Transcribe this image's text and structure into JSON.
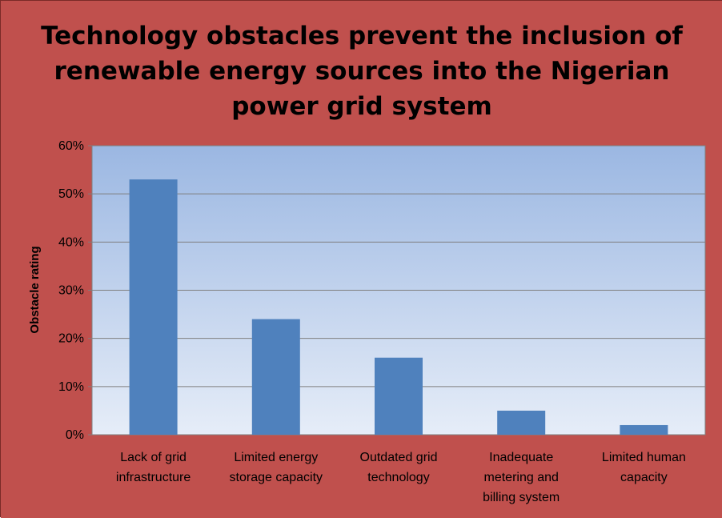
{
  "chart_data": {
    "type": "bar",
    "title_lines": [
      "Technology obstacles prevent the inclusion of",
      "renewable energy sources into the Nigerian",
      "power grid system"
    ],
    "ylabel": "Obstacle rating",
    "xlabel": "",
    "categories": [
      [
        "Lack of grid",
        "infrastructure"
      ],
      [
        "Limited energy",
        "storage capacity"
      ],
      [
        "Outdated grid",
        "technology"
      ],
      [
        "Inadequate",
        "metering and",
        "billing system"
      ],
      [
        "Limited human",
        "capacity"
      ]
    ],
    "values": [
      53,
      24,
      16,
      5,
      2
    ],
    "ylim": [
      0,
      60
    ],
    "yticks": [
      0,
      10,
      20,
      30,
      40,
      50,
      60
    ],
    "ytick_labels": [
      "0%",
      "10%",
      "20%",
      "30%",
      "40%",
      "50%",
      "60%"
    ],
    "grid": true,
    "legend": "none",
    "colors": {
      "background": "#c0504d",
      "bar": "#4f81bd",
      "plot_top": "#9bb7e2",
      "plot_bottom": "#e6edf8",
      "gridline": "#7f7f7f"
    }
  }
}
